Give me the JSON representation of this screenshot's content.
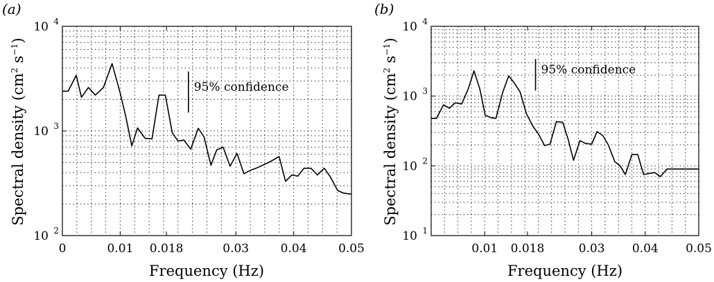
{
  "figure": {
    "panels": [
      "(a)",
      "(b)"
    ]
  },
  "chart_data": [
    {
      "type": "line",
      "panel_label": "(a)",
      "xlabel": "Frequency (Hz)",
      "ylabel": "Spectral density (cm² s⁻¹)",
      "ylabel_parts": {
        "pre": "Spectral density (cm",
        "sup1": "2",
        "mid": " s",
        "sup2": "−1",
        "post": ")"
      },
      "y_scale": "log",
      "ylim": [
        100,
        10000
      ],
      "xlim": [
        0,
        0.05
      ],
      "x_ticks": [
        0,
        0.01,
        0.018,
        0.03,
        0.04,
        0.05
      ],
      "x_tick_labels": [
        "0",
        "0.01",
        "0.018",
        "0.03",
        "0.04",
        "0.05"
      ],
      "y_ticks": [
        {
          "base": "10",
          "exp": "2",
          "value": 100
        },
        {
          "base": "10",
          "exp": "3",
          "value": 1000
        },
        {
          "base": "10",
          "exp": "4",
          "value": 10000
        }
      ],
      "grid": true,
      "annotation": {
        "text": "95% confidence",
        "bar_low": 1500,
        "bar_high": 3700,
        "x": 0.0218
      },
      "series": [
        {
          "x": [
            0.0,
            0.001,
            0.0024,
            0.0033,
            0.0045,
            0.0057,
            0.0071,
            0.0086,
            0.01,
            0.011,
            0.012,
            0.013,
            0.0143,
            0.0155,
            0.0167,
            0.0178,
            0.019,
            0.02,
            0.021,
            0.0222,
            0.0235,
            0.0245,
            0.0257,
            0.0267,
            0.0278,
            0.029,
            0.0302,
            0.0314,
            0.0325,
            0.0335,
            0.0357,
            0.0375,
            0.0386,
            0.0397,
            0.0407,
            0.0418,
            0.043,
            0.0441,
            0.0453,
            0.0464,
            0.0476,
            0.0486,
            0.0496,
            0.05
          ],
          "y": [
            2400,
            2400,
            3400,
            2100,
            2600,
            2200,
            2600,
            4400,
            2300,
            1350,
            720,
            1070,
            850,
            840,
            2200,
            2200,
            960,
            800,
            820,
            670,
            1060,
            880,
            470,
            660,
            700,
            460,
            610,
            390,
            420,
            440,
            500,
            570,
            330,
            380,
            370,
            440,
            440,
            380,
            440,
            360,
            270,
            255,
            250,
            250
          ]
        }
      ]
    },
    {
      "type": "line",
      "panel_label": "(b)",
      "xlabel": "Frequency (Hz)",
      "ylabel": "Spectral density (cm² s⁻¹)",
      "ylabel_parts": {
        "pre": "Spectral density (cm",
        "sup1": "2",
        "mid": " s",
        "sup2": "−1",
        "post": ")"
      },
      "y_scale": "log",
      "ylim": [
        10,
        10000
      ],
      "xlim": [
        0,
        0.05
      ],
      "x_ticks": [
        0.01,
        0.018,
        0.03,
        0.04,
        0.05
      ],
      "x_tick_labels": [
        "0.01",
        "0.018",
        "0.03",
        "0.04",
        "0.05"
      ],
      "y_ticks": [
        {
          "base": "10",
          "exp": "1",
          "value": 10
        },
        {
          "base": "10",
          "exp": "2",
          "value": 100
        },
        {
          "base": "10",
          "exp": "3",
          "value": 1000
        },
        {
          "base": "10",
          "exp": "4",
          "value": 10000
        }
      ],
      "grid": true,
      "annotation": {
        "text": "95% confidence",
        "bar_low": 1200,
        "bar_high": 3400,
        "x": 0.0195
      },
      "series": [
        {
          "x": [
            0.0,
            0.001,
            0.0023,
            0.0034,
            0.0045,
            0.0057,
            0.0069,
            0.008,
            0.0091,
            0.0101,
            0.0112,
            0.0121,
            0.0134,
            0.0145,
            0.0155,
            0.0166,
            0.0178,
            0.019,
            0.02,
            0.0212,
            0.0222,
            0.0234,
            0.0246,
            0.0256,
            0.0266,
            0.0278,
            0.0288,
            0.03,
            0.031,
            0.0321,
            0.0331,
            0.0343,
            0.0353,
            0.0363,
            0.0375,
            0.0386,
            0.0397,
            0.0408,
            0.0418,
            0.0428,
            0.0441,
            0.0451,
            0.0463,
            0.0474,
            0.0484,
            0.0496,
            0.05
          ],
          "y": [
            480,
            480,
            750,
            670,
            800,
            770,
            1250,
            2300,
            1250,
            530,
            490,
            480,
            1150,
            1950,
            1550,
            1150,
            560,
            370,
            290,
            195,
            205,
            430,
            420,
            240,
            120,
            230,
            210,
            205,
            310,
            270,
            200,
            115,
            100,
            75,
            145,
            145,
            75,
            78,
            80,
            70,
            90,
            90,
            90,
            90,
            90,
            90,
            90
          ]
        }
      ]
    }
  ]
}
